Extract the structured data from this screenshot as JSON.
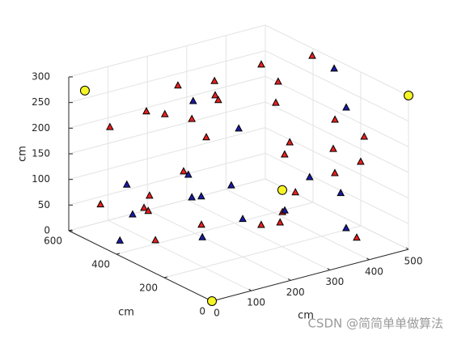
{
  "chart_data": {
    "type": "scatter3d",
    "xlabel": "cm",
    "ylabel": "cm",
    "zlabel": "cm",
    "xlim": [
      0,
      500
    ],
    "ylim": [
      0,
      600
    ],
    "zlim": [
      0,
      300
    ],
    "xticks": [
      0,
      100,
      200,
      300,
      400,
      500
    ],
    "yticks": [
      0,
      200,
      400,
      600
    ],
    "zticks": [
      0,
      50,
      100,
      150,
      200,
      250,
      300
    ],
    "grid": true,
    "watermark": "CSDN @简简单单做算法",
    "series": [
      {
        "color": "#e8201f",
        "marker": "triangle",
        "x": [
          429,
          498,
          310,
          217,
          472,
          251,
          259,
          466,
          76,
          123,
          131,
          44,
          495,
          448,
          107,
          380,
          430,
          367,
          439,
          434,
          110,
          273,
          84,
          20,
          70,
          20,
          240,
          34,
          186,
          234,
          429,
          99
        ],
        "y": [
          500,
          400,
          500,
          500,
          500,
          400,
          400,
          500,
          400,
          400,
          300,
          500,
          300,
          100,
          200,
          300,
          200,
          300,
          100,
          200,
          300,
          100,
          400,
          500,
          400,
          300,
          100,
          100,
          100,
          100,
          100,
          400
        ],
        "z": [
          260,
          286,
          252,
          262,
          218,
          259,
          248,
          178,
          263,
          248,
          260,
          216,
          185,
          207,
          252,
          164,
          164,
          143,
          160,
          116,
          162,
          134,
          97,
          70,
          76,
          103,
          102,
          119,
          88,
          83,
          14,
          7
        ]
      },
      {
        "color": "#1a1aa6",
        "marker": "triangle",
        "x": [
          493,
          195,
          463,
          311,
          122,
          370,
          87,
          292,
          131,
          155,
          449,
          246,
          41,
          139,
          402,
          39,
          97
        ],
        "y": [
          300,
          400,
          200,
          400,
          300,
          200,
          500,
          400,
          300,
          300,
          200,
          100,
          400,
          100,
          100,
          450,
          200
        ],
        "z": [
          285,
          259,
          238,
          182,
          153,
          121,
          95,
          75,
          107,
          104,
          74,
          104,
          69,
          109,
          38,
          7,
          59
        ]
      },
      {
        "color": "#f5f526",
        "marker": "circle",
        "x": [
          41,
          500,
          0,
          361
        ],
        "y": [
          600,
          0,
          0,
          300
        ],
        "z": [
          265,
          300,
          0,
          75
        ]
      }
    ]
  }
}
